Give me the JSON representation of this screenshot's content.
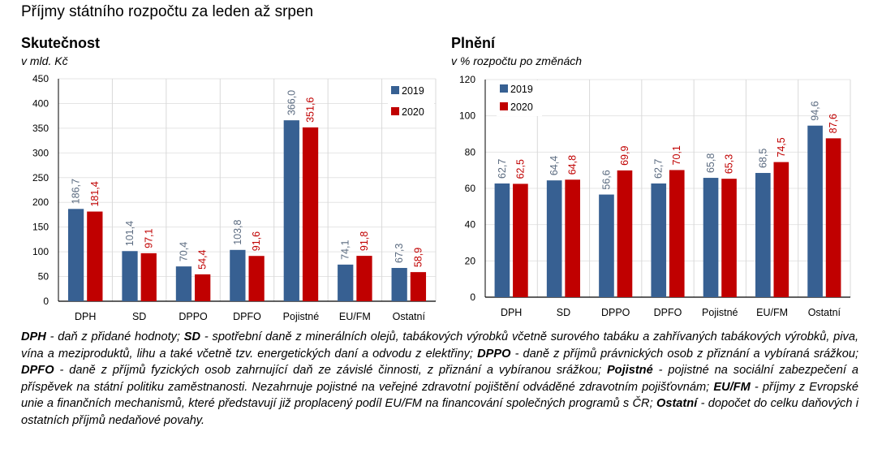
{
  "title": "Příjmy státního  rozpočtu za leden až srpen",
  "colors": {
    "2019": "#376092",
    "2020": "#C00000",
    "label2019": "#5B6B80",
    "label2020": "#C00000",
    "grid": "#D9D9D9"
  },
  "chart_data": [
    {
      "type": "bar",
      "title": "Skutečnost",
      "subtitle": "v mld. Kč",
      "categories": [
        "DPH",
        "SD",
        "DPPO",
        "DPFO",
        "Pojistné",
        "EU/FM",
        "Ostatní"
      ],
      "series": [
        {
          "name": "2019",
          "values": [
            186.7,
            101.4,
            70.4,
            103.8,
            366.0,
            74.1,
            67.3
          ],
          "labels": [
            "186,7",
            "101,4",
            "70,4",
            "103,8",
            "366,0",
            "74,1",
            "67,3"
          ]
        },
        {
          "name": "2020",
          "values": [
            181.4,
            97.1,
            54.4,
            91.6,
            351.6,
            91.8,
            58.9
          ],
          "labels": [
            "181,4",
            "97,1",
            "54,4",
            "91,6",
            "351,6",
            "91,8",
            "58,9"
          ]
        }
      ],
      "ylim": [
        0,
        450
      ],
      "yticks": [
        "0",
        "50",
        "100",
        "150",
        "200",
        "250",
        "300",
        "350",
        "400",
        "450"
      ],
      "grid": true,
      "legend": "top-right"
    },
    {
      "type": "bar",
      "title": "Plnění",
      "subtitle": "v % rozpočtu po změnách",
      "categories": [
        "DPH",
        "SD",
        "DPPO",
        "DPFO",
        "Pojistné",
        "EU/FM",
        "Ostatní"
      ],
      "series": [
        {
          "name": "2019",
          "values": [
            62.7,
            64.4,
            56.6,
            62.7,
            65.8,
            68.5,
            94.6
          ],
          "labels": [
            "62,7",
            "64,4",
            "56,6",
            "62,7",
            "65,8",
            "68,5",
            "94,6"
          ]
        },
        {
          "name": "2020",
          "values": [
            62.5,
            64.8,
            69.9,
            70.1,
            65.3,
            74.5,
            87.6
          ],
          "labels": [
            "62,5",
            "64,8",
            "69,9",
            "70,1",
            "65,3",
            "74,5",
            "87,6"
          ]
        }
      ],
      "ylim": [
        0,
        120
      ],
      "yticks": [
        "0",
        "20",
        "40",
        "60",
        "80",
        "100",
        "120"
      ],
      "grid": true,
      "legend": "top-left"
    }
  ],
  "footnote": [
    {
      "term": "DPH",
      "text": " - daň z přidané hodnoty; "
    },
    {
      "term": "SD",
      "text": " - spotřební daně z minerálních olejů, tabákových výrobků včetně surového tabáku a zahřívaných tabákových výrobků, piva, vína a meziproduktů, lihu a také včetně tzv. energetických daní a odvodu z elektřiny; "
    },
    {
      "term": "DPPO",
      "text": " - daně z příjmů právnických osob z přiznání a vybíraná srážkou; "
    },
    {
      "term": "DPFO",
      "text": " - daně z příjmů fyzických osob zahrnující daň ze závislé činnosti, z přiznání a vybíranou srážkou; "
    },
    {
      "term": "Pojistné",
      "text": " - pojistné na sociální zabezpečení a příspěvek na státní politiku zaměstnanosti. Nezahrnuje pojistné na veřejné zdravotní pojištění odváděné zdravotním pojišťovnám; "
    },
    {
      "term": "EU/FM",
      "text": " - příjmy z Evropské unie a finančních mechanismů, které představují již proplacený podíl EU/FM na financování společných programů s ČR; "
    },
    {
      "term": "Ostatní",
      "text": " - dopočet do celku daňových i ostatních příjmů nedaňové povahy."
    }
  ]
}
